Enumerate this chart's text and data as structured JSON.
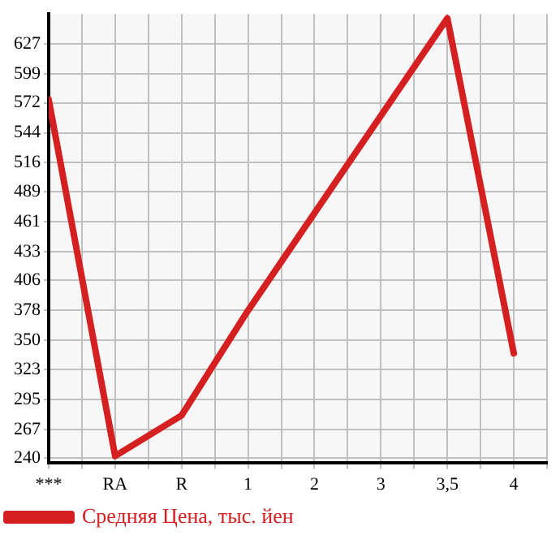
{
  "chart_data": {
    "type": "line",
    "categories": [
      "***",
      "RA",
      "R",
      "1",
      "2",
      "3",
      "3,5",
      "4"
    ],
    "series": [
      {
        "name": "Средняя Цена, тыс. йен",
        "color": "#d42020",
        "values": [
          575,
          242,
          280,
          378,
          469,
          560,
          651,
          338
        ]
      }
    ],
    "ylim": [
      236,
      655
    ],
    "yticks": [
      240,
      267,
      295,
      323,
      350,
      378,
      406,
      433,
      461,
      489,
      516,
      544,
      572,
      599,
      627
    ],
    "grid": true,
    "legend": "bottom",
    "marker": "none",
    "line_style": "solid"
  }
}
